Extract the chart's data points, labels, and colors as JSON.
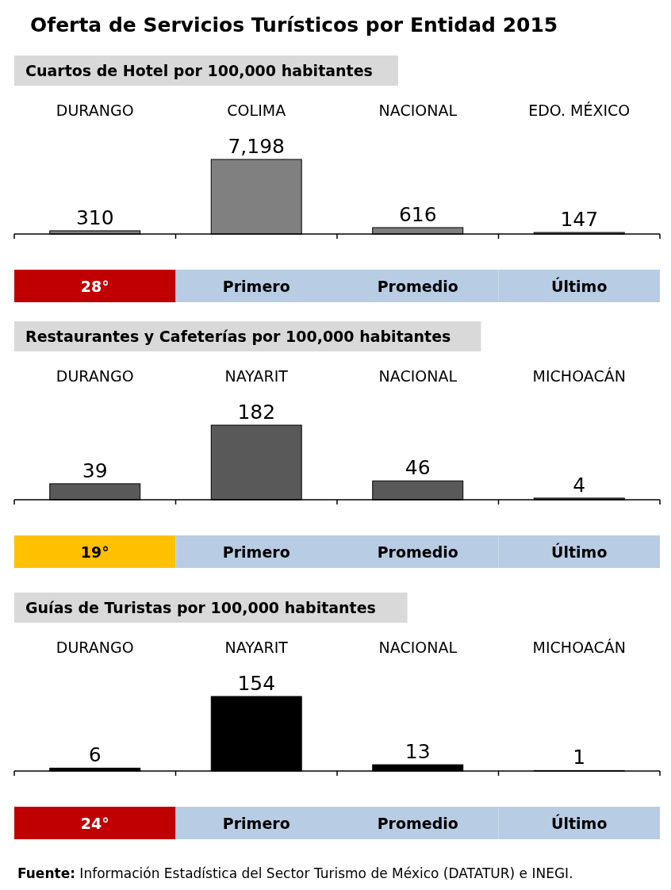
{
  "chart_data": [
    {
      "type": "bar",
      "title": "Oferta de Servicios Turísticos por Entidad 2015",
      "subtitle": "Cuartos de Hotel por 100,000  habitantes",
      "categories": [
        "DURANGO",
        "COLIMA",
        "NACIONAL",
        "EDO. MÉXICO"
      ],
      "values": [
        310,
        7198,
        616,
        147
      ],
      "value_labels": [
        "310",
        "7,198",
        "616",
        "147"
      ],
      "color": "#808080",
      "annotations": [
        "28°",
        "Primero",
        "Promedio",
        "Último"
      ]
    },
    {
      "type": "bar",
      "subtitle": "Restaurantes y Cafeterías por 100,000  habitantes",
      "categories": [
        "DURANGO",
        "NAYARIT",
        "NACIONAL",
        "MICHOACÁN"
      ],
      "values": [
        39,
        182,
        46,
        4
      ],
      "data_labels": true,
      "color": "#595959",
      "annotations": [
        "19°",
        "Primero",
        "Promedio",
        "Último"
      ]
    },
    {
      "type": "bar",
      "subtitle": "Guías de Turistas por 100,000  habitantes",
      "categories": [
        "DURANGO",
        "NAYARIT",
        "NACIONAL",
        "MICHOACÁN"
      ],
      "values": [
        6,
        154,
        13,
        1
      ],
      "data_labels": true,
      "color": "#000000",
      "annotations": [
        "24°",
        "Primero",
        "Promedio",
        "Último",
        "Fuente: Información Estadística del Sector Turismo de México (DATATUR) e INEGI."
      ]
    }
  ]
}
